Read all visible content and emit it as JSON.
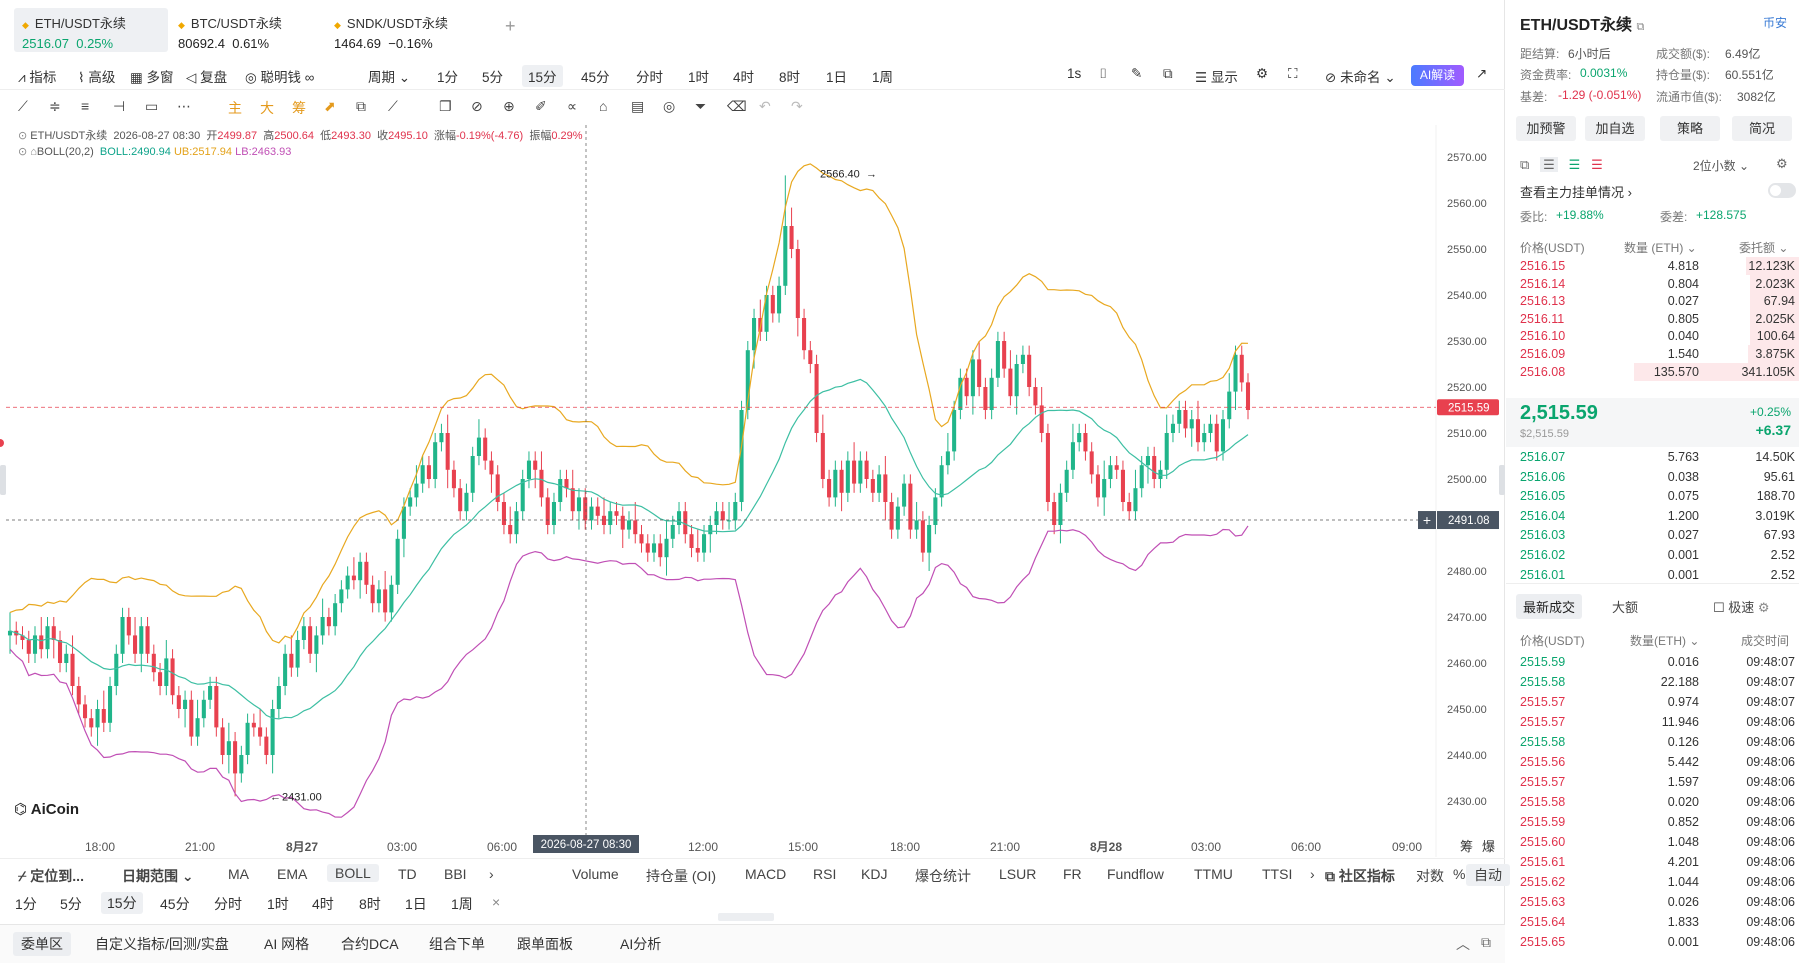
{
  "tabs": [
    {
      "name": "ETH/USDT永续",
      "price": "2516.07",
      "change": "0.25%",
      "active": true
    },
    {
      "name": "BTC/USDT永续",
      "price": "80692.4",
      "change": "0.61%"
    },
    {
      "name": "SNDK/USDT永续",
      "price": "1464.69",
      "change": "−0.16%"
    }
  ],
  "add_tab": "+",
  "toolbar": {
    "indicator": "指标",
    "advanced": "高级",
    "multi": "多窗",
    "replay": "复盘",
    "smart_money": "聪明钱",
    "period": "周期",
    "periods": [
      "1分",
      "5分",
      "15分",
      "45分",
      "分时",
      "1时",
      "4时",
      "8时",
      "1日",
      "1周"
    ],
    "selected_period": "15分",
    "seconds": "1s",
    "display": "显示",
    "unnamed": "未命名",
    "ai": "AI解读"
  },
  "drawtools": {
    "main": "主",
    "big": "大",
    "chips": "筹"
  },
  "info": {
    "symbol": "ETH/USDT永续",
    "time": "2026-08-27 08:30",
    "open_l": "开",
    "open": "2499.87",
    "high_l": "高",
    "high": "2500.64",
    "low_l": "低",
    "low": "2493.30",
    "close_l": "收",
    "close": "2495.10",
    "chg_l": "涨幅",
    "chg": "-0.19%(-4.76)",
    "amp_l": "振幅",
    "amp": "0.29%",
    "boll_name": "BOLL(20,2)",
    "boll": "BOLL:2490.94",
    "ub": "UB:2517.94",
    "lb": "LB:2463.93"
  },
  "chart_data": {
    "type": "candlestick",
    "y_ticks": [
      "2570.00",
      "2560.00",
      "2550.00",
      "2540.00",
      "2530.00",
      "2520.00",
      "2510.00",
      "2500.00",
      "2490.00",
      "2480.00",
      "2470.00",
      "2460.00",
      "2450.00",
      "2440.00",
      "2430.00"
    ],
    "x_ticks": [
      "18:00",
      "21:00",
      "8月27",
      "03:00",
      "06:00",
      "12:00",
      "15:00",
      "18:00",
      "21:00",
      "8月28",
      "03:00",
      "06:00",
      "09:00"
    ],
    "ylim": [
      2425,
      2573
    ],
    "current_price": "2515.59",
    "crosshair_price": "2491.08",
    "crosshair_time": "2026-08-27 08:30",
    "max_label": "2566.40",
    "min_label": "2431.00",
    "corner": [
      "筹",
      "爆"
    ],
    "series": [
      {
        "name": "BOLL",
        "color": "#3dbfa3"
      },
      {
        "name": "UB",
        "color": "#e8a820"
      },
      {
        "name": "LB",
        "color": "#c04fb5"
      }
    ]
  },
  "logo": "AiCoin",
  "indicators": {
    "locate": "定位到...",
    "range": "日期范围",
    "main": [
      "MA",
      "EMA",
      "BOLL",
      "TD",
      "BBI"
    ],
    "sub": [
      "Volume",
      "持仓量 (OI)",
      "MACD",
      "RSI",
      "KDJ",
      "爆仓统计",
      "LSUR",
      "FR",
      "Fundflow",
      "TTMU",
      "TTSI"
    ],
    "community": "社区指标",
    "log": "对数",
    "pct": "%",
    "auto": "自动",
    "selected": "BOLL"
  },
  "periods2": [
    "1分",
    "5分",
    "15分",
    "45分",
    "分时",
    "1时",
    "4时",
    "8时",
    "1日",
    "1周"
  ],
  "periods2_selected": "15分",
  "periods2_close": "×",
  "bottom": {
    "tabs": [
      "委单区",
      "自定义指标/回测/实盘",
      "AI 网格",
      "合约DCA",
      "组合下单",
      "跟单面板",
      "AI分析"
    ],
    "selected": "委单区"
  },
  "right": {
    "title": "ETH/USDT永续",
    "exchange": "币安",
    "stats": [
      {
        "l": "距结算:",
        "v": "6小时后",
        "l2": "成交额($):",
        "v2": "6.49亿"
      },
      {
        "l": "资金费率:",
        "v": "0.0031%",
        "l2": "持仓量($):",
        "v2": "60.551亿"
      },
      {
        "l": "基差:",
        "v": "-1.29 (-0.051%)",
        "l2": "流通市值($):",
        "v2": "3082亿"
      }
    ],
    "buttons": [
      "加预警",
      "加自选",
      "策略",
      "简况"
    ],
    "decimals": "2位小数",
    "mainorders": "查看主力挂单情况",
    "ratio_l": "委比:",
    "ratio": "+19.88%",
    "diff_l": "委差:",
    "diff": "+128.575",
    "ob_headers": [
      "价格(USDT)",
      "数量 (ETH)",
      "委托额"
    ],
    "asks": [
      [
        "2516.15",
        "4.818",
        "12.123K",
        0.32
      ],
      [
        "2516.14",
        "0.804",
        "2.023K",
        0.3
      ],
      [
        "2516.13",
        "0.027",
        "67.94",
        0.3
      ],
      [
        "2516.11",
        "0.805",
        "2.025K",
        0.3
      ],
      [
        "2516.10",
        "0.040",
        "100.64",
        0.3
      ],
      [
        "2516.09",
        "1.540",
        "3.875K",
        0.31
      ],
      [
        "2516.08",
        "135.570",
        "341.105K",
        1.0
      ]
    ],
    "last_price": "2,515.59",
    "last_usd": "$2,515.59",
    "last_pct": "+0.25%",
    "last_chg": "+6.37",
    "bids": [
      [
        "2516.07",
        "5.763",
        "14.50K"
      ],
      [
        "2516.06",
        "0.038",
        "95.61"
      ],
      [
        "2516.05",
        "0.075",
        "188.70"
      ],
      [
        "2516.04",
        "1.200",
        "3.019K"
      ],
      [
        "2516.03",
        "0.027",
        "67.93"
      ],
      [
        "2516.02",
        "0.001",
        "2.52"
      ],
      [
        "2516.01",
        "0.001",
        "2.52"
      ]
    ],
    "trades_tabs": [
      "最新成交",
      "大额"
    ],
    "fast": "极速",
    "trade_headers": [
      "价格(USDT)",
      "数量(ETH)",
      "成交时间"
    ],
    "trades": [
      [
        "2515.59",
        "0.016",
        "09:48:07",
        "g"
      ],
      [
        "2515.58",
        "22.188",
        "09:48:07",
        "g"
      ],
      [
        "2515.57",
        "0.974",
        "09:48:07",
        "r"
      ],
      [
        "2515.57",
        "11.946",
        "09:48:06",
        "r"
      ],
      [
        "2515.58",
        "0.126",
        "09:48:06",
        "g"
      ],
      [
        "2515.56",
        "5.442",
        "09:48:06",
        "r"
      ],
      [
        "2515.57",
        "1.597",
        "09:48:06",
        "r"
      ],
      [
        "2515.58",
        "0.020",
        "09:48:06",
        "r"
      ],
      [
        "2515.59",
        "0.852",
        "09:48:06",
        "r"
      ],
      [
        "2515.60",
        "1.048",
        "09:48:06",
        "r"
      ],
      [
        "2515.61",
        "4.201",
        "09:48:06",
        "r"
      ],
      [
        "2515.62",
        "1.044",
        "09:48:06",
        "r"
      ],
      [
        "2515.63",
        "0.026",
        "09:48:06",
        "r"
      ],
      [
        "2515.64",
        "1.833",
        "09:48:06",
        "r"
      ],
      [
        "2515.65",
        "0.001",
        "09:48:06",
        "r"
      ]
    ]
  }
}
